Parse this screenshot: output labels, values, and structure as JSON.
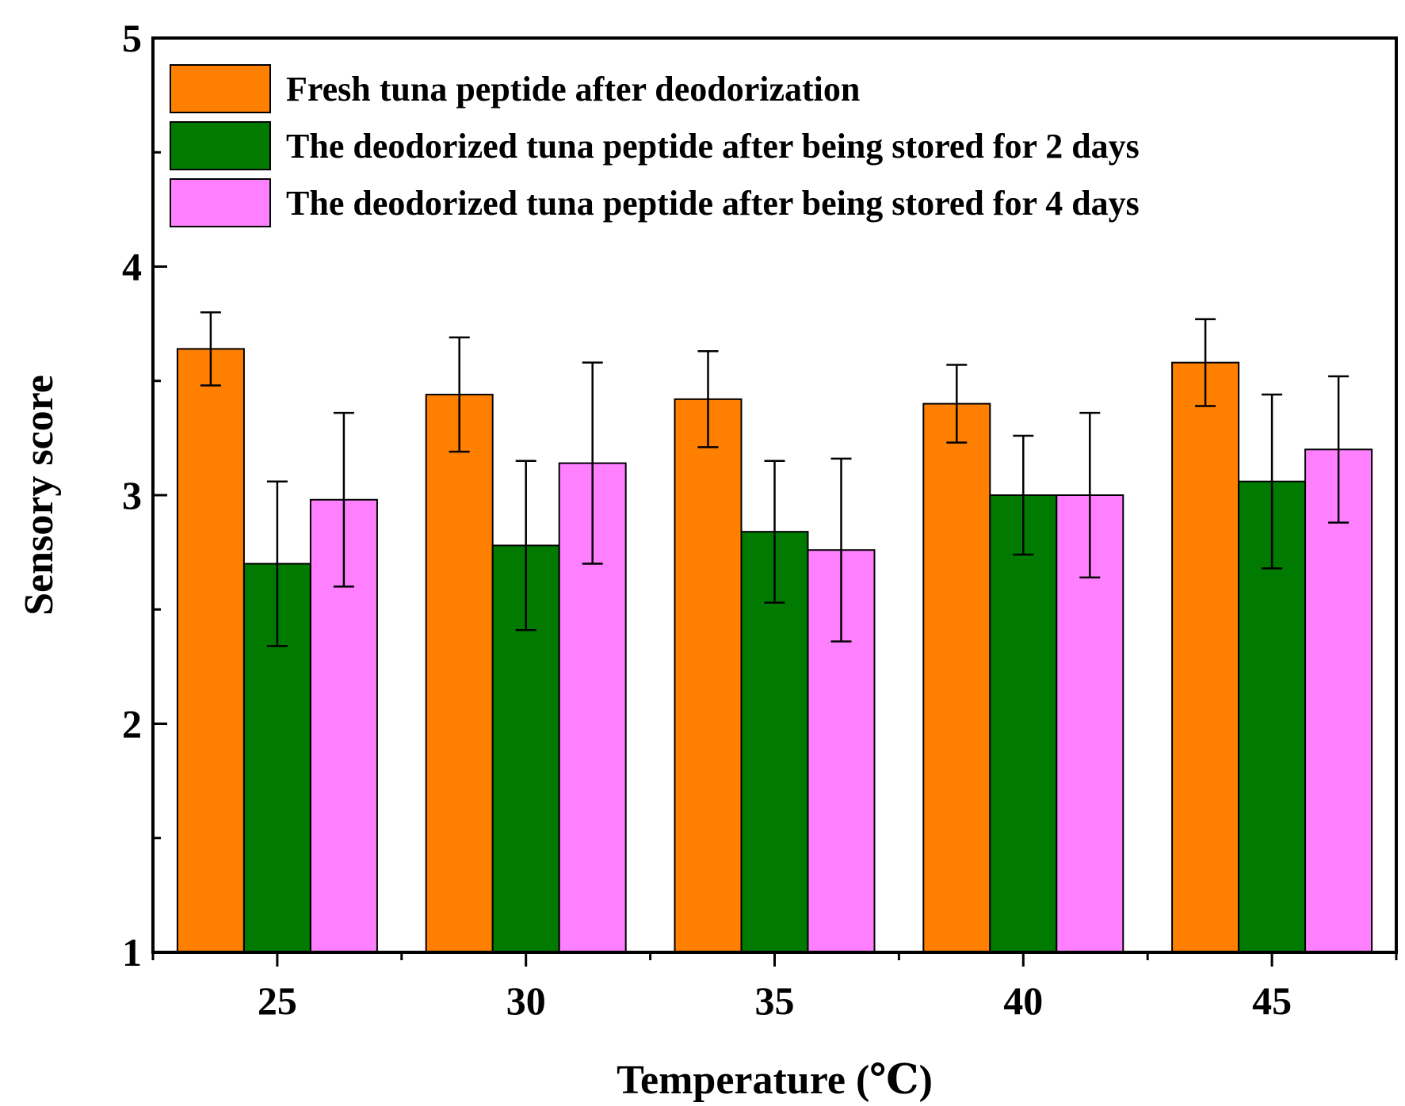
{
  "chart_data": {
    "type": "bar",
    "title": "",
    "xlabel": "Temperature (℃)",
    "ylabel": "Sensory score",
    "categories": [
      "25",
      "30",
      "35",
      "40",
      "45"
    ],
    "ylim": [
      1,
      5
    ],
    "yticks": [
      "1",
      "2",
      "3",
      "4",
      "5"
    ],
    "grid": false,
    "legend_position": "top-left",
    "series": [
      {
        "name": "Fresh tuna peptide after deodorization",
        "color": "#ff7f00",
        "values": [
          3.64,
          3.44,
          3.42,
          3.4,
          3.58
        ],
        "errors": [
          0.16,
          0.25,
          0.21,
          0.17,
          0.19
        ]
      },
      {
        "name": "The deodorized tuna peptide after being stored for 2 days",
        "color": "#007a00",
        "values": [
          2.7,
          2.78,
          2.84,
          3.0,
          3.06
        ],
        "errors": [
          0.36,
          0.37,
          0.31,
          0.26,
          0.38
        ]
      },
      {
        "name": "The deodorized tuna peptide after being stored for 4 days",
        "color": "#ff80ff",
        "values": [
          2.98,
          3.14,
          2.76,
          3.0,
          3.2
        ],
        "errors": [
          0.38,
          0.44,
          0.4,
          0.36,
          0.32
        ]
      }
    ]
  }
}
